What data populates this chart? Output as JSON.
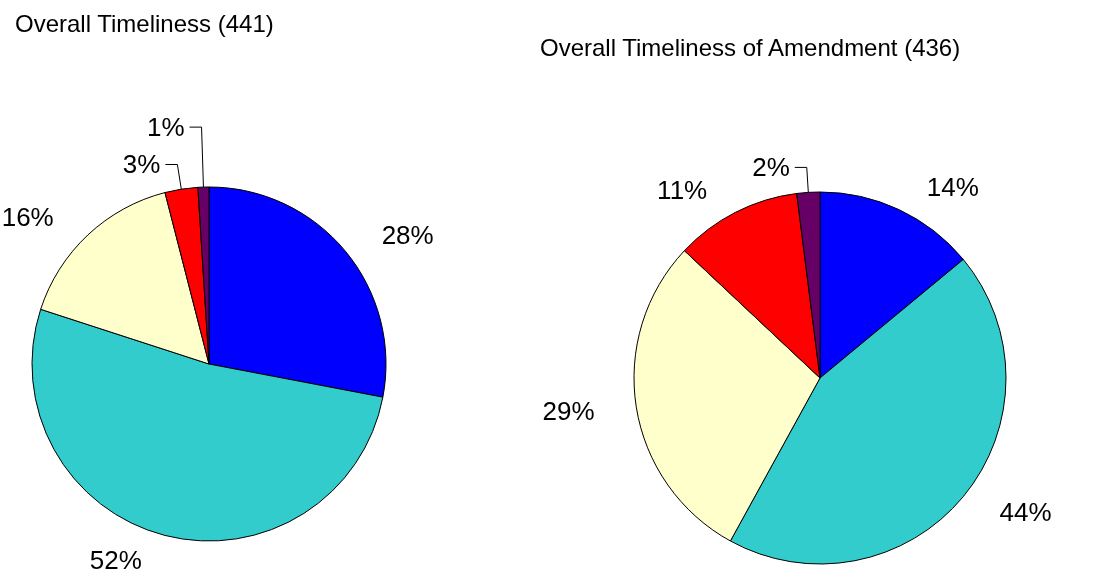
{
  "chart_data": [
    {
      "type": "pie",
      "title": "Overall Timeliness (441)",
      "categories": [
        null,
        null,
        null,
        null,
        null
      ],
      "values": [
        28,
        52,
        16,
        3,
        1
      ],
      "colors": [
        "#0000ff",
        "#33cccc",
        "#ffffcc",
        "#ff0000",
        "#660066"
      ],
      "value_labels": [
        "28%",
        "52%",
        "16%",
        "3%",
        "1%"
      ]
    },
    {
      "type": "pie",
      "title": "Overall Timeliness of Amendment (436)",
      "categories": [
        null,
        null,
        null,
        null,
        null
      ],
      "values": [
        14,
        44,
        29,
        11,
        2
      ],
      "colors": [
        "#0000ff",
        "#33cccc",
        "#ffffcc",
        "#ff0000",
        "#660066"
      ],
      "value_labels": [
        "14%",
        "44%",
        "29%",
        "11%",
        "2%"
      ]
    }
  ]
}
